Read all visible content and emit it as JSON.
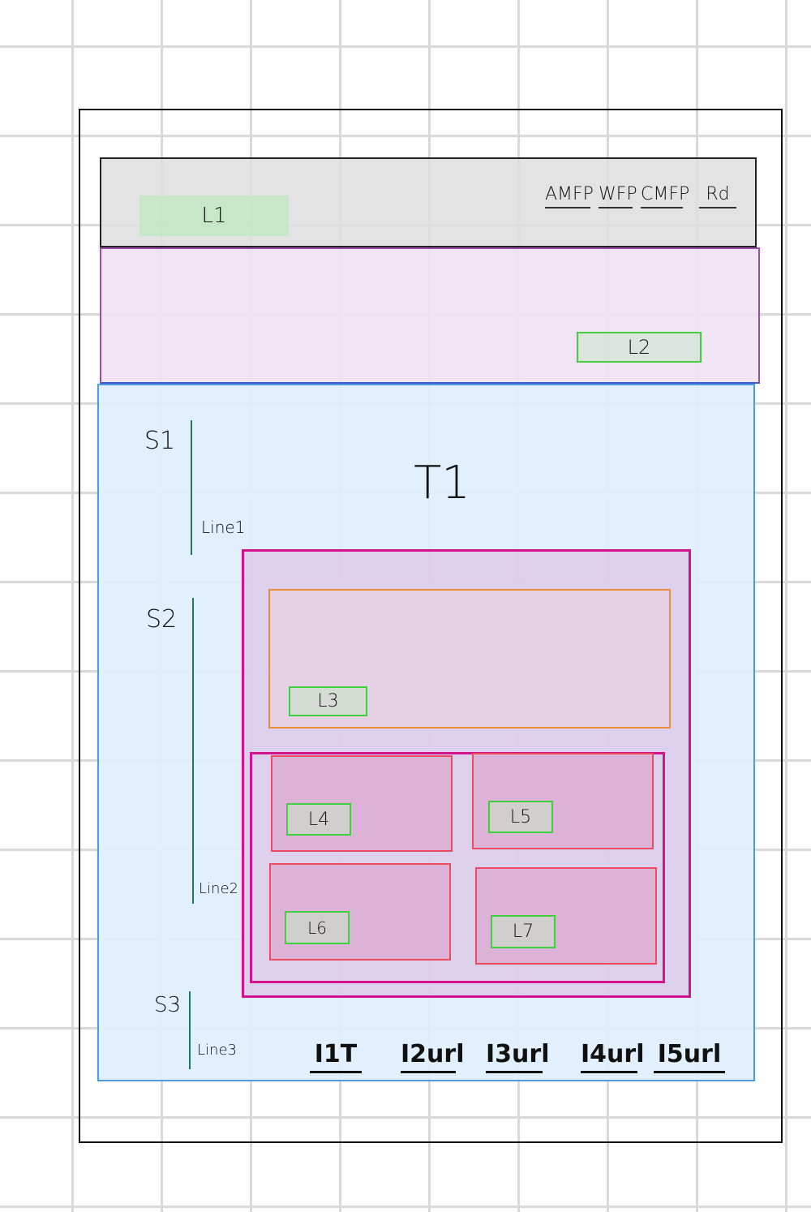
{
  "header": {
    "logo_label": "L1",
    "nav": [
      "AMFP",
      "WFP",
      "CMFP",
      "Rd"
    ]
  },
  "banner": {
    "link_label": "L2"
  },
  "content": {
    "title": "T1",
    "sections": [
      {
        "label": "S1",
        "line": "Line1"
      },
      {
        "label": "S2",
        "line": "Line2"
      },
      {
        "label": "S3",
        "line": "Line3"
      }
    ],
    "feature": {
      "label": "L3"
    },
    "grid": [
      "L4",
      "L5",
      "L6",
      "L7"
    ],
    "footer_links": [
      "I1T",
      "I2url",
      "I3url",
      "I4url",
      "I5url"
    ]
  }
}
